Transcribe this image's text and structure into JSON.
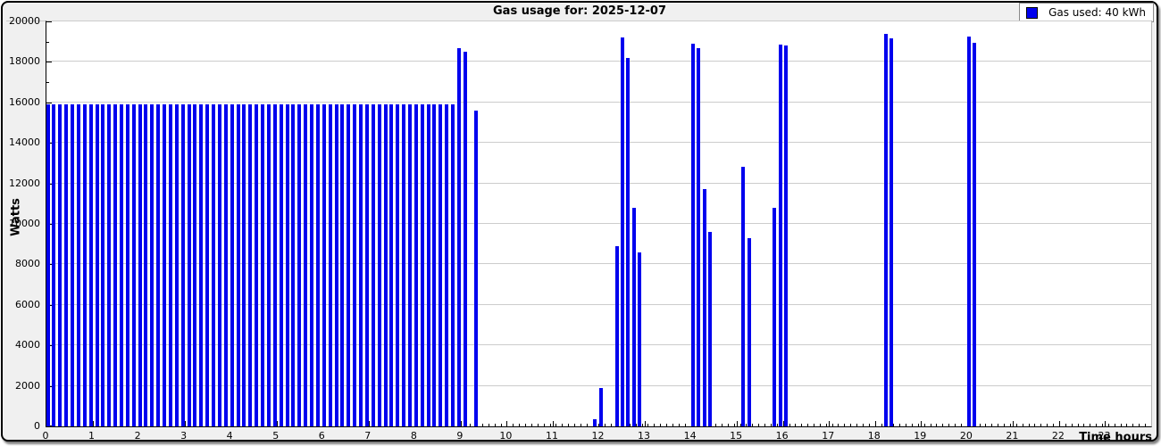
{
  "title": "Gas usage for: 2025-12-07",
  "legend": {
    "label": "Gas used: 40 kWh",
    "swatch_color": "#0000ee"
  },
  "axes": {
    "y_label": "Watts",
    "x_label": "Time hours",
    "y_min": 0,
    "y_max": 20000,
    "y_tick_step": 2000,
    "y_minor_step": 1000,
    "x_min_hour": 0,
    "x_max_hour": 24,
    "x_hour_labels": [
      "0",
      "1",
      "2",
      "3",
      "4",
      "5",
      "6",
      "7",
      "8",
      "9",
      "10",
      "11",
      "12",
      "13",
      "14",
      "15",
      "16",
      "17",
      "18",
      "19",
      "20",
      "21",
      "22",
      "23"
    ],
    "x_minor_step_hours": 0.13333
  },
  "colors": {
    "bar": "#0000ee",
    "grid": "#cccccc",
    "figure_bg": "#f0f0f0",
    "plot_bg": "#ffffff",
    "frame": "#000000"
  },
  "chart_data": {
    "type": "bar",
    "title": "Gas usage for: 2025-12-07",
    "xlabel": "Time hours",
    "ylabel": "Watts",
    "xlim": [
      0,
      24
    ],
    "ylim": [
      0,
      20000
    ],
    "grid": "horizontal-major",
    "legend_position": "top-right",
    "legend_entries": [
      "Gas used: 40 kWh"
    ],
    "x_units": "hours",
    "points_format": "[hour, watts]",
    "points": [
      [
        0.03,
        15900
      ],
      [
        0.163,
        15900
      ],
      [
        0.297,
        15900
      ],
      [
        0.43,
        15900
      ],
      [
        0.563,
        15900
      ],
      [
        0.697,
        15900
      ],
      [
        0.83,
        15900
      ],
      [
        0.963,
        15900
      ],
      [
        1.097,
        15900
      ],
      [
        1.23,
        15900
      ],
      [
        1.363,
        15900
      ],
      [
        1.497,
        15900
      ],
      [
        1.63,
        15900
      ],
      [
        1.763,
        15900
      ],
      [
        1.897,
        15900
      ],
      [
        2.03,
        15900
      ],
      [
        2.163,
        15900
      ],
      [
        2.297,
        15900
      ],
      [
        2.43,
        15900
      ],
      [
        2.563,
        15900
      ],
      [
        2.697,
        15900
      ],
      [
        2.83,
        15900
      ],
      [
        2.963,
        15900
      ],
      [
        3.097,
        15900
      ],
      [
        3.23,
        15900
      ],
      [
        3.363,
        15900
      ],
      [
        3.497,
        15900
      ],
      [
        3.63,
        15900
      ],
      [
        3.763,
        15900
      ],
      [
        3.897,
        15900
      ],
      [
        4.03,
        15900
      ],
      [
        4.163,
        15900
      ],
      [
        4.297,
        15900
      ],
      [
        4.43,
        15900
      ],
      [
        4.563,
        15900
      ],
      [
        4.697,
        15900
      ],
      [
        4.83,
        15900
      ],
      [
        4.963,
        15900
      ],
      [
        5.097,
        15900
      ],
      [
        5.23,
        15900
      ],
      [
        5.363,
        15900
      ],
      [
        5.497,
        15900
      ],
      [
        5.63,
        15900
      ],
      [
        5.763,
        15900
      ],
      [
        5.897,
        15900
      ],
      [
        6.03,
        15900
      ],
      [
        6.163,
        15900
      ],
      [
        6.297,
        15900
      ],
      [
        6.43,
        15900
      ],
      [
        6.563,
        15900
      ],
      [
        6.697,
        15900
      ],
      [
        6.83,
        15900
      ],
      [
        6.963,
        15900
      ],
      [
        7.097,
        15900
      ],
      [
        7.23,
        15900
      ],
      [
        7.363,
        15900
      ],
      [
        7.497,
        15900
      ],
      [
        7.63,
        15900
      ],
      [
        7.763,
        15900
      ],
      [
        7.897,
        15900
      ],
      [
        8.03,
        15900
      ],
      [
        8.163,
        15900
      ],
      [
        8.297,
        15900
      ],
      [
        8.43,
        15900
      ],
      [
        8.563,
        15900
      ],
      [
        8.697,
        15900
      ],
      [
        8.83,
        15900
      ],
      [
        8.96,
        18700
      ],
      [
        9.09,
        18500
      ],
      [
        9.33,
        15600
      ],
      [
        11.92,
        350
      ],
      [
        12.05,
        1900
      ],
      [
        12.4,
        8900
      ],
      [
        12.52,
        19200
      ],
      [
        12.64,
        18200
      ],
      [
        12.76,
        10800
      ],
      [
        12.88,
        8600
      ],
      [
        14.05,
        18900
      ],
      [
        14.17,
        18700
      ],
      [
        14.29,
        11700
      ],
      [
        14.41,
        9600
      ],
      [
        15.14,
        12800
      ],
      [
        15.26,
        9300
      ],
      [
        15.82,
        10800
      ],
      [
        15.94,
        18850
      ],
      [
        16.06,
        18800
      ],
      [
        18.24,
        19400
      ],
      [
        18.36,
        19150
      ],
      [
        20.04,
        19250
      ],
      [
        20.16,
        18950
      ]
    ]
  }
}
